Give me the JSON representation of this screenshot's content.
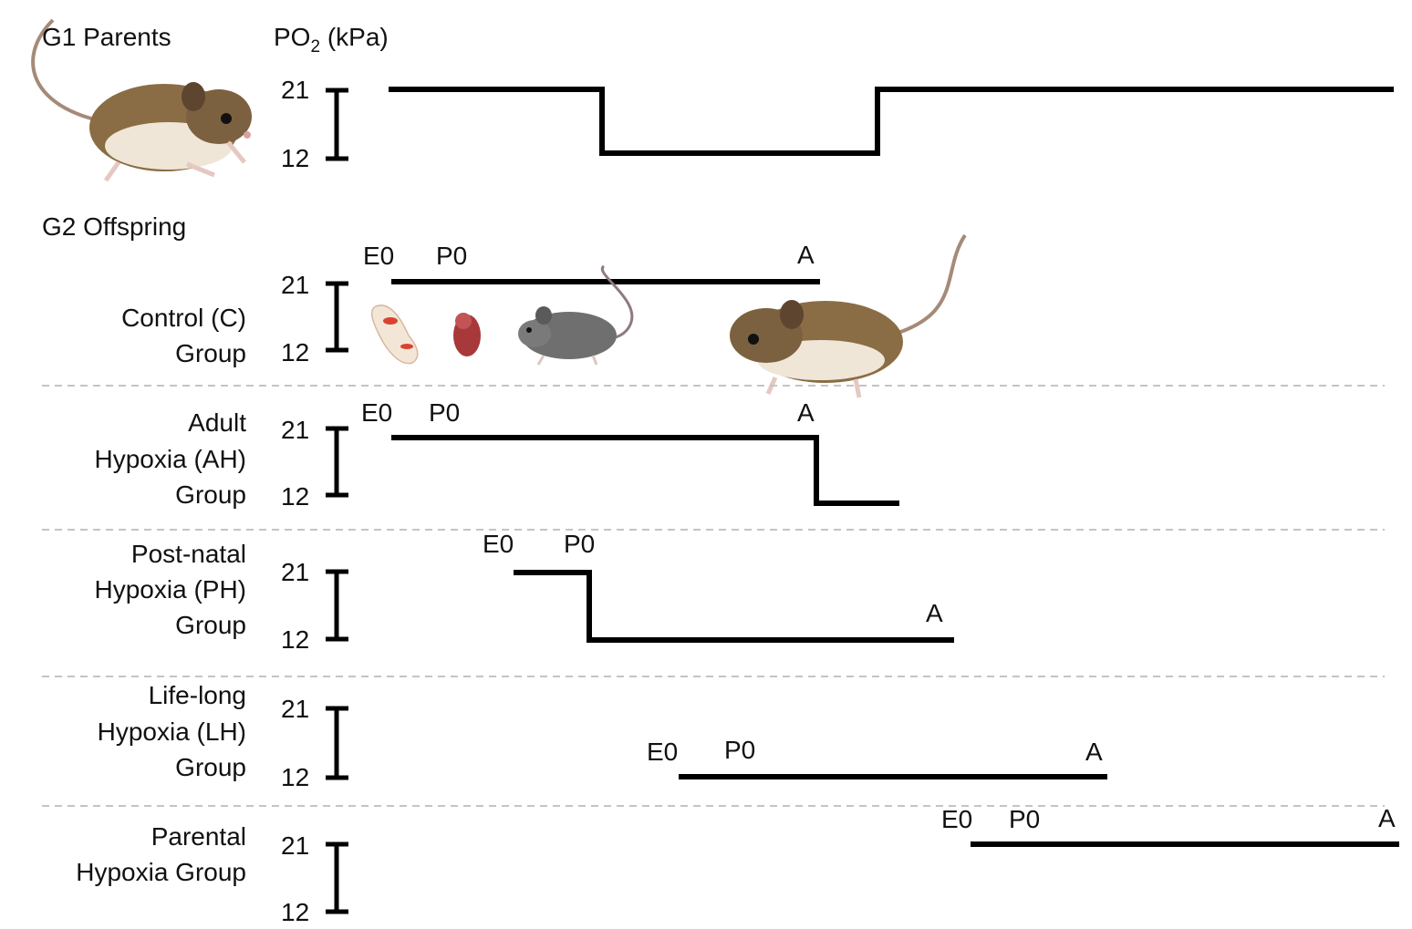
{
  "g1": {
    "title": "G1 Parents",
    "axis_label": "PO",
    "axis_sub": "2",
    "axis_unit": " (kPa)",
    "tick_high": "21",
    "tick_low": "12"
  },
  "g2": {
    "title": "G2 Offspring"
  },
  "groups": [
    {
      "line1": "Control (C)",
      "line2": "Group",
      "line3": "",
      "tick_high": "21",
      "tick_low": "12",
      "e0": "E0",
      "p0": "P0",
      "a": "A"
    },
    {
      "line1": "Adult",
      "line2": "Hypoxia (AH)",
      "line3": "Group",
      "tick_high": "21",
      "tick_low": "12",
      "e0": "E0",
      "p0": "P0",
      "a": "A"
    },
    {
      "line1": "Post-natal",
      "line2": "Hypoxia (PH)",
      "line3": "Group",
      "tick_high": "21",
      "tick_low": "12",
      "e0": "E0",
      "p0": "P0",
      "a": "A"
    },
    {
      "line1": "Life-long",
      "line2": "Hypoxia (LH)",
      "line3": "Group",
      "tick_high": "21",
      "tick_low": "12",
      "e0": "E0",
      "p0": "P0",
      "a": "A"
    },
    {
      "line1": "Parental",
      "line2": "Hypoxia Group",
      "line3": "",
      "tick_high": "21",
      "tick_low": "12",
      "e0": "E0",
      "p0": "P0",
      "a": "A"
    }
  ]
}
